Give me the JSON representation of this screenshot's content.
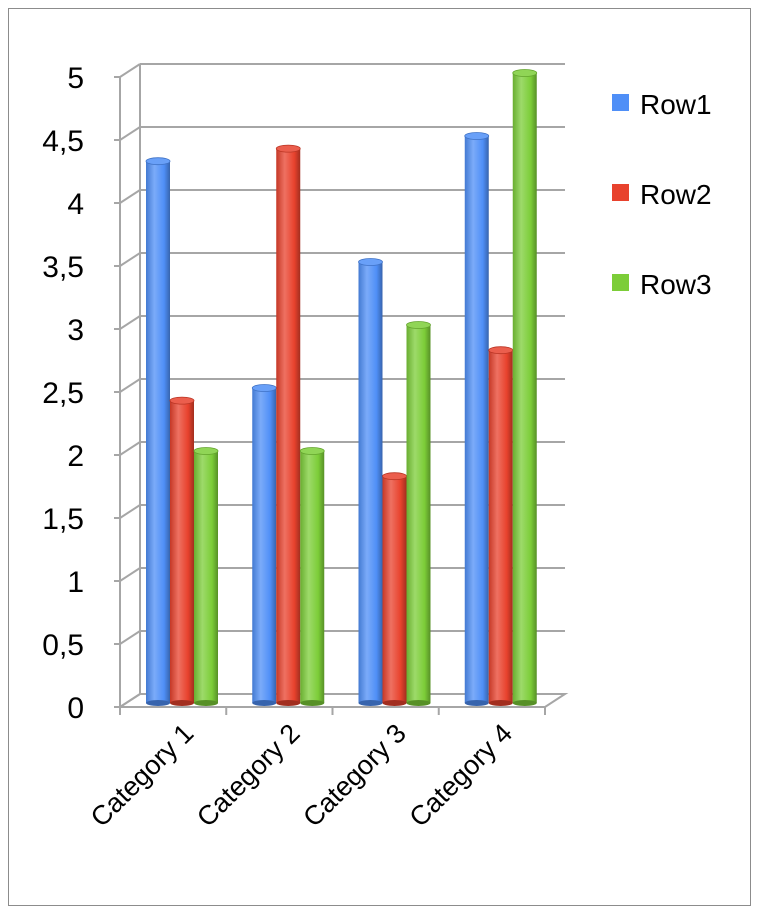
{
  "chart_data": {
    "type": "bar",
    "title": "",
    "xlabel": "",
    "ylabel": "",
    "categories": [
      "Category 1",
      "Category 2",
      "Category 3",
      "Category 4"
    ],
    "series": [
      {
        "name": "Row1",
        "values": [
          4.3,
          2.5,
          3.5,
          4.5
        ],
        "color": "#4f8ff7"
      },
      {
        "name": "Row2",
        "values": [
          2.4,
          4.4,
          1.8,
          2.8
        ],
        "color": "#e8422d"
      },
      {
        "name": "Row3",
        "values": [
          2.0,
          2.0,
          3.0,
          5.0
        ],
        "color": "#7ccd38"
      }
    ],
    "ylim": [
      0,
      5
    ],
    "yticks": [
      0,
      0.5,
      1,
      1.5,
      2,
      2.5,
      3,
      3.5,
      4,
      4.5,
      5
    ],
    "ytick_labels": [
      "0",
      "0,5",
      "1",
      "1,5",
      "2",
      "2,5",
      "3",
      "3,5",
      "4",
      "4,5",
      "5"
    ],
    "grid": true,
    "legend_position": "right-top",
    "style": "3d-cylinder"
  }
}
